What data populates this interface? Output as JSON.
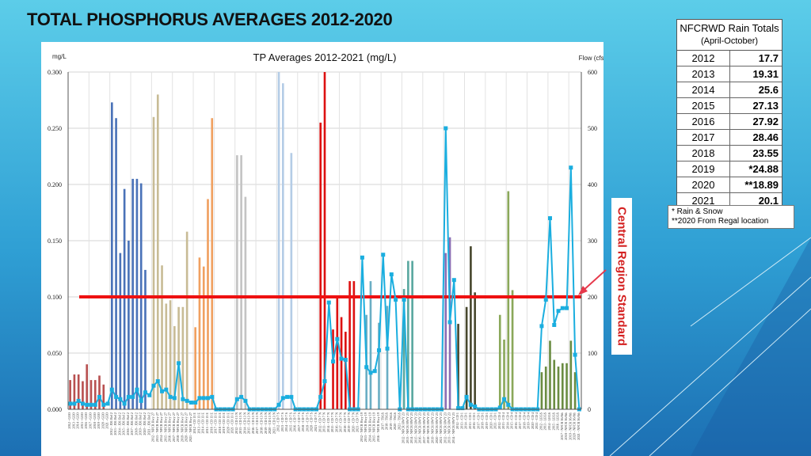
{
  "slide": {
    "title": "TOTAL PHOSPHORUS AVERAGES 2012-2020"
  },
  "region_label": "Central Region Standard",
  "rain_table": {
    "title": "NFCRWD Rain Totals",
    "subtitle": "(April-October)",
    "rows": [
      {
        "year": "2012",
        "value": "17.7"
      },
      {
        "year": "2013",
        "value": "19.31"
      },
      {
        "year": "2014",
        "value": "25.6"
      },
      {
        "year": "2015",
        "value": "27.13"
      },
      {
        "year": "2016",
        "value": "27.92"
      },
      {
        "year": "2017",
        "value": "28.46"
      },
      {
        "year": "2018",
        "value": "23.55"
      },
      {
        "year": "2019",
        "value": "*24.88"
      },
      {
        "year": "2020",
        "value": "**18.89"
      },
      {
        "year": "2021",
        "value": "20.1"
      }
    ],
    "notes": [
      "* Rain & Snow",
      "**2020 From Regal location"
    ]
  },
  "colors": {
    "standard_line": "#ee1111",
    "flow_line": "#1aaedf",
    "arrow": "#e6394b"
  },
  "chart_data": {
    "type": "bar",
    "title": "TP Averages 2012-2021 (mg/L)",
    "ylabel": "mg/L",
    "y2label": "Flow (cfs)",
    "ylim": [
      0,
      0.3
    ],
    "y2lim": [
      0,
      600
    ],
    "yticks": [
      "0.000",
      "0.050",
      "0.100",
      "0.150",
      "0.200",
      "0.250",
      "0.300"
    ],
    "y2ticks": [
      "0",
      "100",
      "200",
      "300",
      "400",
      "500",
      "600"
    ],
    "grid": true,
    "standard": 0.1,
    "groups": [
      {
        "color": "#b85050",
        "labels": [
          "2012 - GEO",
          "2013 - GEO",
          "2014 - GEO",
          "2015 - GEO",
          "2016 - GEO",
          "2017 - GEO",
          "2018 - GEO",
          "2019 - GEO",
          "2020 - GEO",
          "2021 - GEO"
        ],
        "values": [
          0.026,
          0.031,
          0.031,
          0.025,
          0.04,
          0.026,
          0.026,
          0.03,
          0.022,
          0.0
        ],
        "flow": [
          10,
          10,
          15,
          10,
          8,
          8,
          8,
          22,
          8,
          10
        ]
      },
      {
        "color": "#4a72b8",
        "labels": [
          "2012 - JD1 Bel 2",
          "2013 - JD1 Bel 2",
          "2014 - JD1 Bel 2",
          "2015 - JD1 Bel 2",
          "2016 - JD1 Bel 2",
          "2017 - JD1 Bel 2",
          "2018 - JD1 Bel 2",
          "2019 - JD1 Bel 2",
          "2020 - JD1 Bel 2",
          "2021 - JD1 Bel 2"
        ],
        "values": [
          0.273,
          0.259,
          0.139,
          0.196,
          0.15,
          0.205,
          0.205,
          0.201,
          0.124,
          0.0
        ],
        "flow": [
          35,
          22,
          18,
          10,
          22,
          22,
          35,
          15,
          30,
          25
        ]
      },
      {
        "color": "#c8bc96",
        "labels": [
          "2012 - NFCR Hwy 27",
          "2013 - NFCR Hwy 27",
          "2014 - NFCR Hwy 27",
          "2015 - NFCR Hwy 27",
          "2016 - NFCR Hwy 27",
          "2017 - NFCR Hwy 27",
          "2018 - NFCR Hwy 27",
          "2019 - NFCR Hwy 27",
          "2020 - NFCR Hwy 27",
          "2021 - NFCR Hwy 27"
        ],
        "values": [
          0.26,
          0.28,
          0.128,
          0.094,
          0.097,
          0.074,
          0.091,
          0.091,
          0.158,
          0.0
        ],
        "flow": [
          42,
          50,
          32,
          35,
          22,
          20,
          82,
          18,
          15,
          12
        ]
      },
      {
        "color": "#f0a060",
        "labels": [
          "2012 - CD 13 E",
          "2013 - CD 13 E",
          "2014 - CD 13 E",
          "2015 - CD 13 E",
          "2016 - CD 13 E",
          "2017 - CD 13 E",
          "2018 - CD 13 E",
          "2019 - CD 13 E",
          "2020 - CD 13 E",
          "2021 - CD 13 E"
        ],
        "values": [
          0.073,
          0.135,
          0.127,
          0.187,
          0.259,
          0.0,
          0.0,
          0.0,
          0.0,
          0.0
        ],
        "flow": [
          12,
          20,
          20,
          20,
          22,
          0,
          0,
          0,
          0,
          0
        ]
      },
      {
        "color": "#c4c4c4",
        "labels": [
          "2012 - CD 13 N",
          "2013 - CD 13 N",
          "2014 - CD 13 N",
          "2015 - CD 13 N",
          "2016 - CD 13 N",
          "2017 - CD 13 N",
          "2018 - CD 13 N",
          "2019 - CD 13 N",
          "2020 - CD 13 N",
          "2021 - CD 13 N"
        ],
        "values": [
          0.226,
          0.226,
          0.189,
          0.0,
          0.0,
          0.0,
          0.0,
          0.0,
          0.0,
          0.0
        ],
        "flow": [
          18,
          22,
          15,
          0,
          0,
          0,
          0,
          0,
          0,
          0
        ]
      },
      {
        "color": "#b4cce6",
        "labels": [
          "2012 - CD 7 S",
          "2013 - CD 7 S",
          "2014 - CD 7 S",
          "2015 - CD 7 S",
          "2016 - CD 7 S",
          "2017 - CD 7 S",
          "2018 - CD 7 S",
          "2019 - CD 7 S",
          "2020 - CD 7 S",
          "2021 - CD 7 S"
        ],
        "values": [
          0.3,
          0.29,
          0.0,
          0.228,
          0.0,
          0.0,
          0.0,
          0.0,
          0.0,
          0.0
        ],
        "flow": [
          8,
          20,
          22,
          22,
          0,
          0,
          0,
          0,
          0,
          0
        ]
      },
      {
        "color": "#dd1111",
        "labels": [
          "2012 - CD 7 N",
          "2013 - CD 7 N",
          "2014 - CD 7 N",
          "2015 - CD 7 N",
          "2016 - CD 7 N",
          "2017 - CD 7 N",
          "2018 - CD 7 N",
          "2019 - CD 7 N",
          "2020 - CD 7 N",
          "2021 - CD 7 N"
        ],
        "values": [
          0.255,
          0.3,
          0.0,
          0.071,
          0.1,
          0.082,
          0.069,
          0.114,
          0.114,
          0.0
        ],
        "flow": [
          22,
          50,
          190,
          85,
          125,
          90,
          88,
          0,
          0,
          0
        ]
      },
      {
        "color": "#6aaec4",
        "labels": [
          "2012 - NFCR Hwy 19",
          "2013 - NFCR Hwy 19",
          "2014 - NFCR Hwy 19",
          "2015 - NFCR Hwy 19",
          "2016 - NFCR Hwy 19",
          "2017 - TSGS",
          "2018 - TSGS",
          "2019 - TSGS",
          "2020 - TSGS",
          "2021 - TSGS"
        ],
        "values": [
          0.0,
          0.084,
          0.114,
          0.0,
          0.077,
          0.0,
          0.092,
          0.0,
          0.0,
          0.0
        ],
        "flow": [
          270,
          75,
          65,
          68,
          105,
          275,
          108,
          240,
          195,
          0
        ]
      },
      {
        "color": "#5aa8a0",
        "labels": [
          "2012 - NFCR HWY 23",
          "2013 - NFCR HWY 23",
          "2014 - NFCR HWY 23",
          "2015 - NFCR HWY 23",
          "2016 - NFCR HWY 23",
          "2017 - NFCR HWY 23",
          "2018 - NFCR HWY 23",
          "2019 - NFCR HWY 23",
          "2020 - NFCR HWY 23",
          "2021 - NFCR HWY 23"
        ],
        "values": [
          0.107,
          0.132,
          0.132,
          0.0,
          0.0,
          0.0,
          0.0,
          0.0,
          0.0,
          0.0
        ],
        "flow": [
          195,
          0,
          0,
          0,
          0,
          0,
          0,
          0,
          0,
          0
        ]
      },
      {
        "color": "#8a6eb4",
        "labels": [
          "2012 - NFCR HWY 23",
          "2013 - NFCR HWY 23",
          "2014 - NFCR HWY 23"
        ],
        "values": [
          0.139,
          0.153,
          0.0
        ],
        "flow": [
          500,
          155,
          230
        ]
      },
      {
        "color": "#48482e",
        "labels": [
          "2012 - CD 1",
          "2013 - CD 1",
          "2014 - CD 1",
          "2015 - CD 1",
          "2016 - CD 1",
          "2017 - CD 1",
          "2018 - CD 1",
          "2019 - CD 1",
          "2020 - CD 1",
          "2021 - CD 1"
        ],
        "values": [
          0.076,
          0.0,
          0.091,
          0.145,
          0.104,
          0.0,
          0.0,
          0.0,
          0.0,
          0.0
        ],
        "flow": [
          2,
          2,
          22,
          8,
          5,
          0,
          0,
          0,
          0,
          0
        ]
      },
      {
        "color": "#8aa85a",
        "labels": [
          "2012 - CD 4",
          "2013 - CD 4",
          "2014 - CD 4",
          "2015 - CD 4",
          "2016 - CD 4",
          "2017 - CD 4",
          "2018 - CD 4",
          "2019 - CD 4",
          "2020 - CD 4",
          "2021 - CD 4"
        ],
        "values": [
          0.084,
          0.062,
          0.194,
          0.106,
          0.0,
          0.0,
          0.0,
          0.0,
          0.0,
          0.0
        ],
        "flow": [
          3,
          18,
          8,
          0,
          0,
          0,
          0,
          0,
          0,
          0
        ]
      },
      {
        "color": "#6a8c42",
        "labels": [
          "2012 - LEGS",
          "2013 - LEGS",
          "2014 - LEGS",
          "2015 - LEGS",
          "2016 - LEGS",
          "2017 - NFCR 36/8th",
          "2018 - NFCR 36/8th",
          "2019 - NFCR 36/8th",
          "2020 - NFCR 36/8th",
          "2021 - NFCR 36/8th"
        ],
        "values": [
          0.033,
          0.038,
          0.061,
          0.044,
          0.038,
          0.041,
          0.041,
          0.061,
          0.033,
          0.0
        ],
        "flow": [
          148,
          195,
          340,
          150,
          175,
          180,
          180,
          430,
          97,
          0
        ]
      }
    ]
  }
}
